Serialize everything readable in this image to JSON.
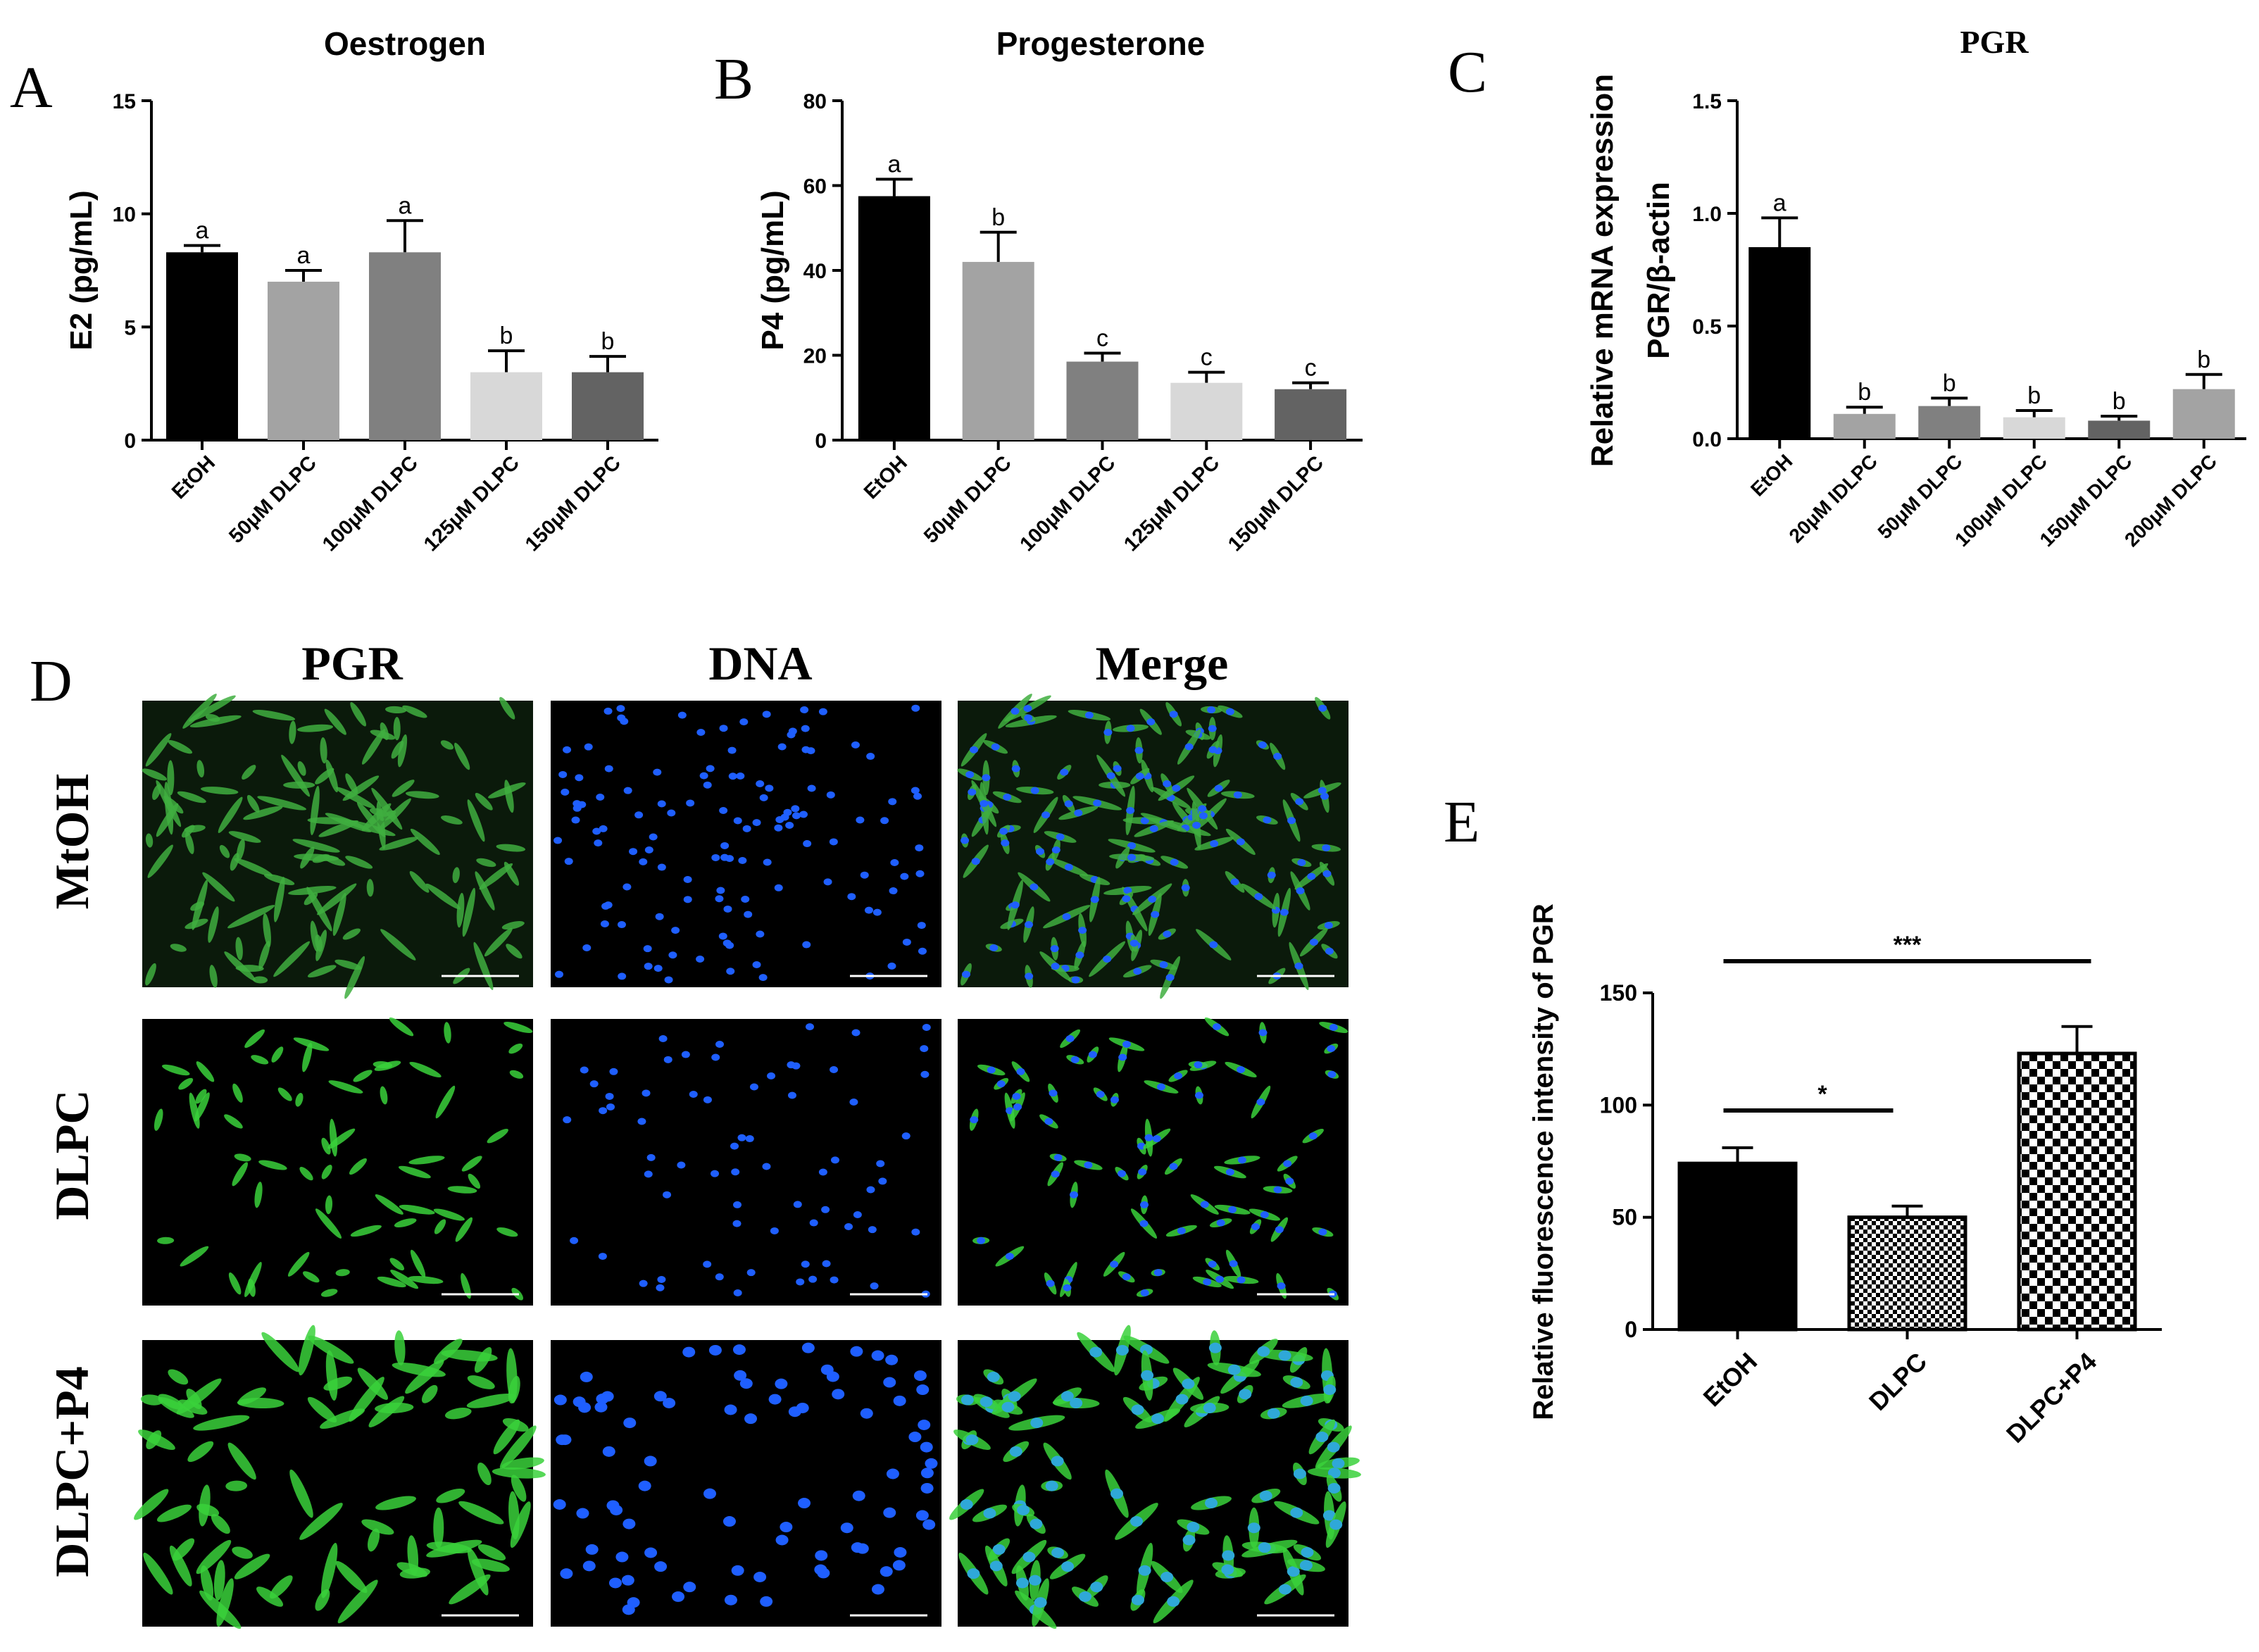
{
  "panel_letters": {
    "a": "A",
    "b": "B",
    "c": "C",
    "d": "D",
    "e": "E"
  },
  "chart_data": [
    {
      "id": "A",
      "type": "bar",
      "title": "Oestrogen",
      "xlabel": "",
      "ylabel": "E2 (pg/mL)",
      "ylim": [
        0,
        15
      ],
      "yticks": [
        "0",
        "5",
        "10",
        "15"
      ],
      "categories": [
        "EtOH",
        "50μM DLPC",
        "100μM DLPC",
        "125μM DLPC",
        "150μM DLPC"
      ],
      "values": [
        8.3,
        7.0,
        8.3,
        3.0,
        3.0
      ],
      "errors": [
        0.3,
        0.5,
        1.4,
        0.95,
        0.7
      ],
      "letters": [
        "a",
        "a",
        "a",
        "b",
        "b"
      ],
      "colors": [
        "#000000",
        "#a3a3a3",
        "#808080",
        "#d8d8d8",
        "#636363"
      ]
    },
    {
      "id": "B",
      "type": "bar",
      "title": "Progesterone",
      "xlabel": "",
      "ylabel": "P4 (pg/mL)",
      "ylim": [
        0,
        80
      ],
      "yticks": [
        "0",
        "20",
        "40",
        "60",
        "80"
      ],
      "categories": [
        "EtOH",
        "50μM DLPC",
        "100μM DLPC",
        "125μM DLPC",
        "150μM DLPC"
      ],
      "values": [
        57.5,
        42,
        18.5,
        13.5,
        12
      ],
      "errors": [
        4,
        7,
        2,
        2.5,
        1.5
      ],
      "letters": [
        "a",
        "b",
        "c",
        "c",
        "c"
      ],
      "colors": [
        "#000000",
        "#a3a3a3",
        "#808080",
        "#d8d8d8",
        "#636363"
      ]
    },
    {
      "id": "C",
      "type": "bar",
      "title": "PGR",
      "xlabel": "",
      "ylabel": "Relative mRNA expression",
      "ylabel2": "PGR/β-actin",
      "ylim": [
        0,
        1.5
      ],
      "yticks": [
        "0.0",
        "0.5",
        "1.0",
        "1.5"
      ],
      "categories": [
        "EtOH",
        "20μM lDLPC",
        "50μM DLPC",
        "100μM DLPC",
        "150μM DLPC",
        "200μM DLPC"
      ],
      "values": [
        0.85,
        0.11,
        0.145,
        0.095,
        0.08,
        0.22
      ],
      "errors": [
        0.13,
        0.03,
        0.035,
        0.03,
        0.02,
        0.065
      ],
      "letters": [
        "a",
        "b",
        "b",
        "b",
        "b",
        "b"
      ],
      "colors": [
        "#000000",
        "#a3a3a3",
        "#808080",
        "#d8d8d8",
        "#636363",
        "#a3a3a3"
      ]
    },
    {
      "id": "E",
      "type": "bar",
      "title": "",
      "xlabel": "",
      "ylabel": "Relative fluorescence intensity of PGR",
      "ylim": [
        0,
        150
      ],
      "yticks": [
        "0",
        "50",
        "100",
        "150"
      ],
      "categories": [
        "EtOH",
        "DLPC",
        "DLPC+P4"
      ],
      "values": [
        74,
        50,
        123
      ],
      "errors": [
        7,
        5,
        12
      ],
      "fills": [
        "solid",
        "fine-checker",
        "coarse-checker"
      ],
      "significance": [
        {
          "from": 0,
          "to": 2,
          "label": "***"
        },
        {
          "from": 0,
          "to": 1,
          "label": "*"
        }
      ]
    }
  ],
  "micrographs": {
    "column_headers": [
      "PGR",
      "DNA",
      "Merge"
    ],
    "row_labels": [
      "MtOH",
      "DLPC",
      "DLPC+P4"
    ]
  }
}
